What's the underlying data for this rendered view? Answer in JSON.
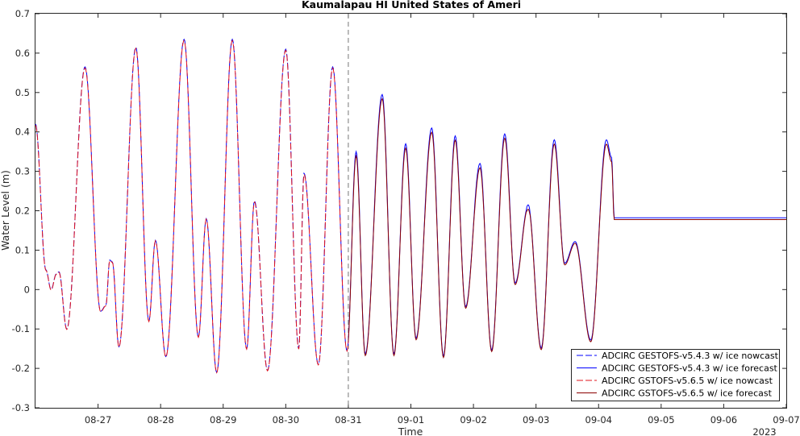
{
  "chart_data": {
    "type": "line",
    "title": "Kaumalapau HI United States of Ameri",
    "xlabel": "Time",
    "ylabel": "Water Level (m)",
    "year_label": "2023",
    "x_ticks": [
      "08-27",
      "08-28",
      "08-29",
      "08-30",
      "08-31",
      "09-01",
      "09-02",
      "09-03",
      "09-04",
      "09-05",
      "09-06",
      "09-07"
    ],
    "xlim": [
      "2023-08-26T00:00",
      "2023-09-07T00:00"
    ],
    "ylim": [
      -0.3,
      0.7
    ],
    "y_ticks": [
      "-0.3",
      "-0.2",
      "-0.1",
      "0",
      "0.1",
      "0.2",
      "0.3",
      "0.4",
      "0.5",
      "0.6",
      "0.7"
    ],
    "nowcast_forecast_boundary": "2023-08-31T00:00",
    "legend_position": "bottom-right",
    "grid": false,
    "series": [
      {
        "name": "ADCIRC GESTOFS-v5.4.3 w/ ice nowcast",
        "color": "#0000ff",
        "dash": "dashed"
      },
      {
        "name": "ADCIRC GESTOFS-v5.4.3 w/ ice forecast",
        "color": "#0000ff",
        "dash": "solid"
      },
      {
        "name": "ADCIRC GSTOFS-v5.6.5 w/ ice nowcast",
        "color": "#e0141e",
        "dash": "dashed"
      },
      {
        "name": "ADCIRC GSTOFS-v5.6.5 w/ ice forecast",
        "color": "#8b0000",
        "dash": "solid"
      }
    ],
    "extrema_hours_since_start": [
      [
        0,
        0.42
      ],
      [
        4,
        0.05
      ],
      [
        6,
        0.0
      ],
      [
        8,
        0.04
      ],
      [
        9,
        0.045
      ],
      [
        12,
        -0.1
      ],
      [
        19,
        0.565
      ],
      [
        25,
        -0.055
      ],
      [
        27,
        -0.04
      ],
      [
        28.5,
        0.075
      ],
      [
        29.5,
        0.07
      ],
      [
        32,
        -0.145
      ],
      [
        38.5,
        0.615
      ],
      [
        43.5,
        -0.08
      ],
      [
        46,
        0.125
      ],
      [
        50,
        -0.17
      ],
      [
        57,
        0.635
      ],
      [
        62.5,
        -0.12
      ],
      [
        65.5,
        0.18
      ],
      [
        69.5,
        -0.21
      ],
      [
        75.5,
        0.635
      ],
      [
        81,
        -0.15
      ],
      [
        84,
        0.225
      ],
      [
        89,
        -0.205
      ],
      [
        96,
        0.61
      ],
      [
        101,
        -0.15
      ],
      [
        103,
        0.295
      ],
      [
        108.5,
        -0.19
      ],
      [
        114,
        0.565
      ],
      [
        119.5,
        -0.155
      ],
      [
        123,
        0.345
      ],
      [
        126.5,
        -0.165
      ],
      [
        133,
        0.49
      ],
      [
        137.5,
        -0.165
      ],
      [
        142,
        0.365
      ],
      [
        146,
        -0.125
      ],
      [
        152,
        0.405
      ],
      [
        156.5,
        -0.17
      ],
      [
        161,
        0.385
      ],
      [
        165,
        -0.045
      ],
      [
        170.5,
        0.315
      ],
      [
        175,
        -0.155
      ],
      [
        180,
        0.39
      ],
      [
        184,
        0.015
      ],
      [
        189,
        0.21
      ],
      [
        194,
        -0.15
      ],
      [
        199,
        0.375
      ],
      [
        203,
        0.065
      ],
      [
        207,
        0.12
      ],
      [
        213,
        -0.13
      ],
      [
        219,
        0.375
      ],
      [
        221,
        0.33
      ],
      [
        222,
        0.18
      ]
    ],
    "series_offsets_m": [
      0,
      0.005,
      -0.003,
      -0.006
    ]
  }
}
